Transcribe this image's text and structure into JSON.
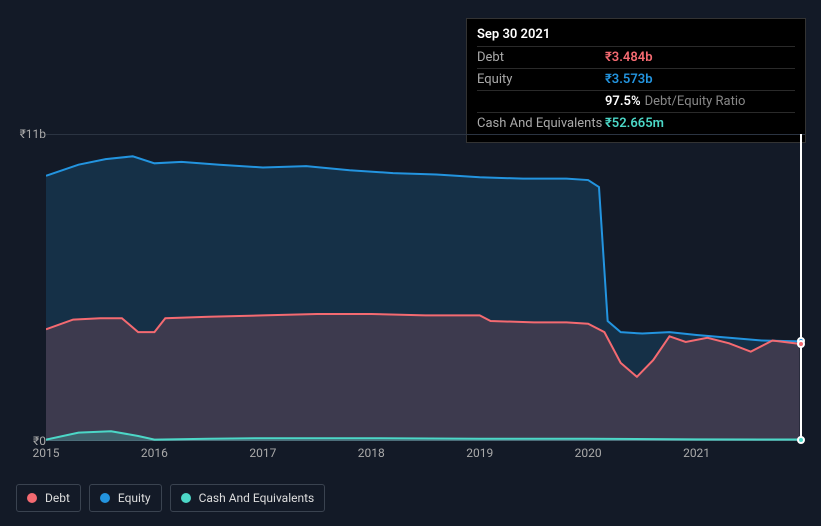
{
  "tooltip": {
    "date": "Sep 30 2021",
    "rows": [
      {
        "label": "Debt",
        "value": "₹3.484b",
        "color": "#f46a71"
      },
      {
        "label": "Equity",
        "value": "₹3.573b",
        "color": "#2394df"
      },
      {
        "label": "",
        "value": "97.5%",
        "suffix": "Debt/Equity Ratio",
        "color": "#ffffff"
      },
      {
        "label": "Cash And Equivalents",
        "value": "₹52.665m",
        "color": "#4cd7c7"
      }
    ]
  },
  "chart": {
    "type": "area",
    "background_color": "#131a27",
    "grid_color": "#2b3442",
    "text_color": "#aaaaaa",
    "y_axis": {
      "min": 0,
      "max": 11,
      "unit": "b",
      "currency": "₹",
      "ticks": [
        {
          "value": 0,
          "label": "₹0"
        },
        {
          "value": 11,
          "label": "₹11b"
        }
      ]
    },
    "x_axis": {
      "min": 2015,
      "max": 2022,
      "ticks": [
        2015,
        2016,
        2017,
        2018,
        2019,
        2020,
        2021
      ]
    },
    "crosshair_x": 2021.95,
    "series": [
      {
        "name": "Equity",
        "color": "#2394df",
        "fill_opacity": 0.18,
        "line_width": 2,
        "points": [
          [
            2015.0,
            9.5
          ],
          [
            2015.3,
            9.9
          ],
          [
            2015.55,
            10.1
          ],
          [
            2015.8,
            10.2
          ],
          [
            2016.0,
            9.95
          ],
          [
            2016.25,
            10.0
          ],
          [
            2016.6,
            9.9
          ],
          [
            2017.0,
            9.8
          ],
          [
            2017.4,
            9.85
          ],
          [
            2017.8,
            9.7
          ],
          [
            2018.2,
            9.6
          ],
          [
            2018.6,
            9.55
          ],
          [
            2019.0,
            9.45
          ],
          [
            2019.4,
            9.4
          ],
          [
            2019.8,
            9.4
          ],
          [
            2020.0,
            9.35
          ],
          [
            2020.1,
            9.1
          ],
          [
            2020.18,
            4.3
          ],
          [
            2020.3,
            3.9
          ],
          [
            2020.5,
            3.85
          ],
          [
            2020.75,
            3.9
          ],
          [
            2021.0,
            3.8
          ],
          [
            2021.3,
            3.7
          ],
          [
            2021.6,
            3.6
          ],
          [
            2021.95,
            3.57
          ]
        ]
      },
      {
        "name": "Debt",
        "color": "#f46a71",
        "fill_opacity": 0.18,
        "line_width": 2,
        "points": [
          [
            2015.0,
            4.0
          ],
          [
            2015.25,
            4.35
          ],
          [
            2015.5,
            4.4
          ],
          [
            2015.7,
            4.4
          ],
          [
            2015.85,
            3.9
          ],
          [
            2016.0,
            3.9
          ],
          [
            2016.1,
            4.4
          ],
          [
            2016.5,
            4.45
          ],
          [
            2017.0,
            4.5
          ],
          [
            2017.5,
            4.55
          ],
          [
            2018.0,
            4.55
          ],
          [
            2018.5,
            4.5
          ],
          [
            2019.0,
            4.5
          ],
          [
            2019.1,
            4.3
          ],
          [
            2019.5,
            4.25
          ],
          [
            2019.8,
            4.25
          ],
          [
            2020.0,
            4.2
          ],
          [
            2020.15,
            3.9
          ],
          [
            2020.3,
            2.8
          ],
          [
            2020.45,
            2.3
          ],
          [
            2020.6,
            2.9
          ],
          [
            2020.75,
            3.75
          ],
          [
            2020.9,
            3.55
          ],
          [
            2021.1,
            3.7
          ],
          [
            2021.3,
            3.5
          ],
          [
            2021.5,
            3.2
          ],
          [
            2021.7,
            3.6
          ],
          [
            2021.95,
            3.48
          ]
        ]
      },
      {
        "name": "Cash And Equivalents",
        "color": "#4cd7c7",
        "fill_opacity": 0.25,
        "line_width": 2,
        "points": [
          [
            2015.0,
            0.05
          ],
          [
            2015.3,
            0.3
          ],
          [
            2015.6,
            0.35
          ],
          [
            2015.85,
            0.18
          ],
          [
            2016.0,
            0.05
          ],
          [
            2016.5,
            0.08
          ],
          [
            2017.0,
            0.1
          ],
          [
            2018.0,
            0.1
          ],
          [
            2019.0,
            0.08
          ],
          [
            2020.0,
            0.08
          ],
          [
            2021.0,
            0.06
          ],
          [
            2021.95,
            0.053
          ]
        ]
      }
    ]
  },
  "legend": {
    "items": [
      {
        "label": "Debt",
        "color": "#f46a71"
      },
      {
        "label": "Equity",
        "color": "#2394df"
      },
      {
        "label": "Cash And Equivalents",
        "color": "#4cd7c7"
      }
    ]
  }
}
